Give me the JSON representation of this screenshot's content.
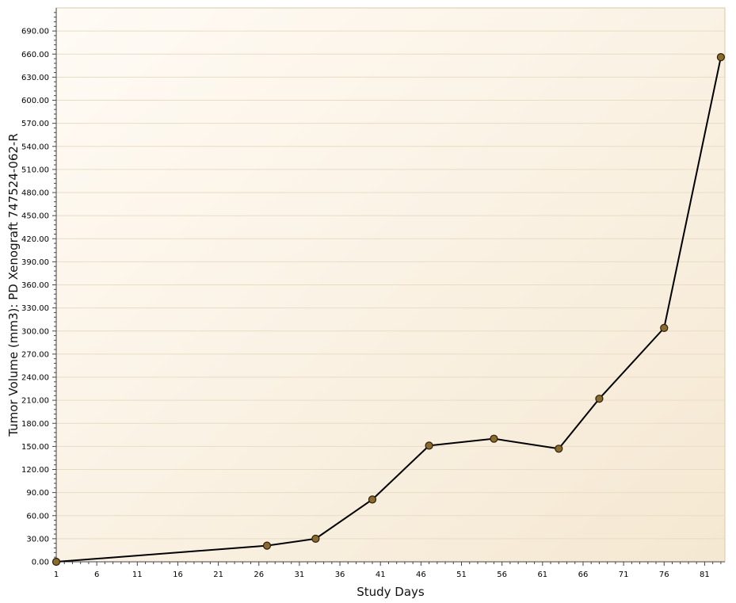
{
  "chart_data": {
    "type": "line",
    "title": "",
    "xlabel": "Study Days",
    "ylabel": "Tumor Volume (mm3): PD Xenograft 747524-062-R",
    "xlim": [
      1,
      83.5
    ],
    "ylim": [
      0,
      720
    ],
    "x_ticks": [
      1,
      6,
      11,
      16,
      21,
      26,
      31,
      36,
      41,
      46,
      51,
      56,
      61,
      66,
      71,
      76,
      81
    ],
    "x_tick_labels": [
      "1",
      "6",
      "11",
      "16",
      "21",
      "26",
      "31",
      "36",
      "41",
      "46",
      "51",
      "56",
      "61",
      "66",
      "71",
      "76",
      "81"
    ],
    "y_ticks": [
      0,
      30,
      60,
      90,
      120,
      150,
      180,
      210,
      240,
      270,
      300,
      330,
      360,
      390,
      420,
      450,
      480,
      510,
      540,
      570,
      600,
      630,
      660,
      690
    ],
    "y_tick_labels": [
      "0.00",
      "30.00",
      "60.00",
      "90.00",
      "120.00",
      "150.00",
      "180.00",
      "210.00",
      "240.00",
      "270.00",
      "300.00",
      "330.00",
      "360.00",
      "390.00",
      "420.00",
      "450.00",
      "480.00",
      "510.00",
      "540.00",
      "570.00",
      "600.00",
      "630.00",
      "660.00",
      "690.00"
    ],
    "grid": true,
    "series": [
      {
        "x": [
          1,
          27,
          33,
          40,
          47,
          55,
          63,
          68,
          76,
          83
        ],
        "y": [
          0,
          21,
          30,
          81,
          151,
          160,
          147,
          212,
          304,
          656
        ]
      }
    ],
    "colors": {
      "line": "#000000",
      "marker_fill": "#8b6a2e",
      "marker_stroke": "#2a1d08",
      "plot_bg_start": "#fffbf5",
      "plot_bg_end": "#f5e8d2",
      "grid": "#e8dcc4",
      "axis": "#444444"
    }
  }
}
